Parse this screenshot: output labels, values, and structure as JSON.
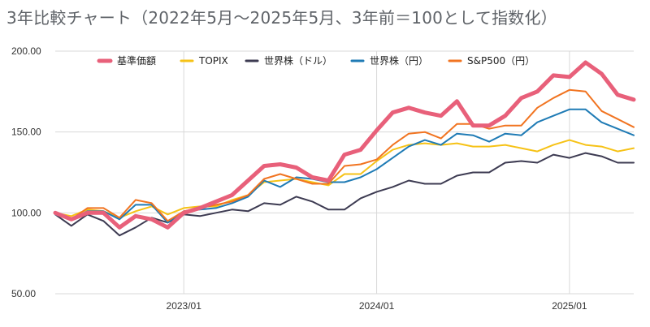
{
  "chart_data": {
    "type": "line",
    "title": "3年比較チャート（2022年5月〜2025年5月、3年前＝100として指数化）",
    "xlabel": "",
    "ylabel": "",
    "ylim": [
      50,
      200
    ],
    "yticks": [
      "200.00",
      "150.00",
      "100.00",
      "50.00"
    ],
    "xticks": [
      "2023/01",
      "2024/01",
      "2025/01"
    ],
    "x": [
      "2022/05",
      "2022/06",
      "2022/07",
      "2022/08",
      "2022/09",
      "2022/10",
      "2022/11",
      "2022/12",
      "2023/01",
      "2023/02",
      "2023/03",
      "2023/04",
      "2023/05",
      "2023/06",
      "2023/07",
      "2023/08",
      "2023/09",
      "2023/10",
      "2023/11",
      "2023/12",
      "2024/01",
      "2024/02",
      "2024/03",
      "2024/04",
      "2024/05",
      "2024/06",
      "2024/07",
      "2024/08",
      "2024/09",
      "2024/10",
      "2024/11",
      "2024/12",
      "2025/01",
      "2025/02",
      "2025/03",
      "2025/04",
      "2025/05"
    ],
    "grid": true,
    "legend_position": "top",
    "series": [
      {
        "name": "基準価額",
        "color": "#e8607a",
        "width": 5,
        "values": [
          100,
          96,
          100,
          100,
          91,
          98,
          96,
          91,
          100,
          103,
          107,
          111,
          120,
          129,
          130,
          128,
          122,
          120,
          136,
          139,
          151,
          162,
          165,
          162,
          160,
          169,
          154,
          154,
          160,
          171,
          175,
          185,
          184,
          193,
          186,
          173,
          170
        ]
      },
      {
        "name": "TOPIX",
        "color": "#f6c216",
        "width": 2,
        "values": [
          100,
          98,
          102,
          101,
          97,
          101,
          104,
          99,
          103,
          104,
          104,
          108,
          111,
          119,
          120,
          121,
          119,
          117,
          124,
          124,
          132,
          139,
          142,
          143,
          142,
          143,
          141,
          141,
          142,
          140,
          138,
          142,
          145,
          142,
          141,
          138,
          140
        ]
      },
      {
        "name": "世界株（ドル）",
        "color": "#3d3b52",
        "width": 2,
        "values": [
          99,
          92,
          99,
          95,
          86,
          91,
          97,
          94,
          99,
          98,
          100,
          102,
          101,
          106,
          105,
          110,
          107,
          102,
          102,
          109,
          113,
          116,
          120,
          118,
          118,
          123,
          125,
          125,
          131,
          132,
          131,
          136,
          134,
          137,
          135,
          131,
          131
        ]
      },
      {
        "name": "世界株（円）",
        "color": "#1f7bb5",
        "width": 2,
        "values": [
          99,
          96,
          101,
          101,
          96,
          105,
          105,
          94,
          101,
          102,
          103,
          106,
          110,
          120,
          116,
          122,
          121,
          119,
          119,
          122,
          127,
          134,
          141,
          145,
          142,
          149,
          148,
          144,
          149,
          148,
          156,
          160,
          164,
          164,
          156,
          152,
          148
        ]
      },
      {
        "name": "S&P500（円）",
        "color": "#f17421",
        "width": 2,
        "values": [
          100,
          96,
          103,
          103,
          97,
          108,
          106,
          95,
          101,
          103,
          105,
          107,
          111,
          121,
          124,
          121,
          118,
          118,
          129,
          130,
          133,
          142,
          149,
          150,
          146,
          155,
          155,
          152,
          154,
          154,
          165,
          171,
          176,
          175,
          163,
          158,
          153
        ]
      }
    ]
  }
}
